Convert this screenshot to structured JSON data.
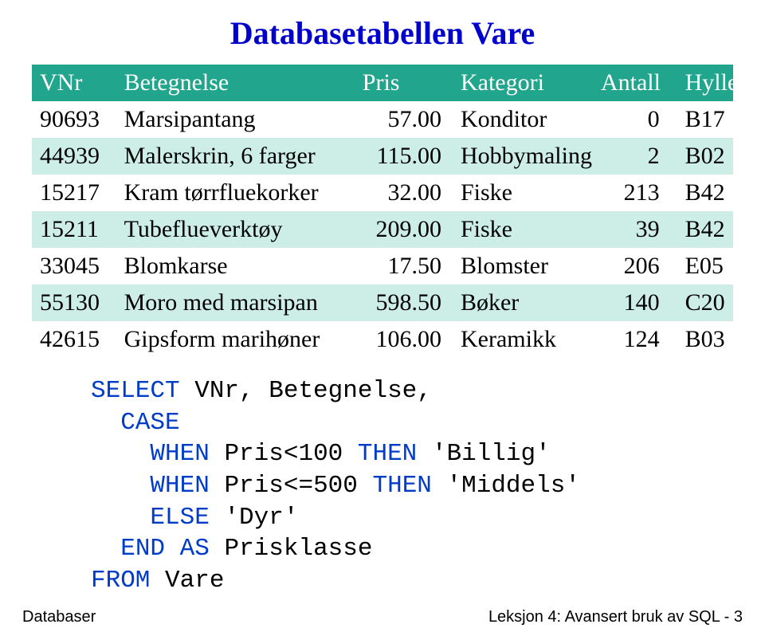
{
  "title": "Databasetabellen Vare",
  "headers": {
    "vnr": "VNr",
    "betegnelse": "Betegnelse",
    "pris": "Pris",
    "kategori": "Kategori",
    "antall": "Antall",
    "hylle": "Hylle"
  },
  "rows": [
    {
      "vnr": "90693",
      "bet": "Marsipantang",
      "pris": "57.00",
      "kat": "Konditor",
      "ant": "0",
      "hylle": "B17"
    },
    {
      "vnr": "44939",
      "bet": "Malerskrin, 6 farger",
      "pris": "115.00",
      "kat": "Hobbymaling",
      "ant": "2",
      "hylle": "B02"
    },
    {
      "vnr": "15217",
      "bet": "Kram tørrfluekorker",
      "pris": "32.00",
      "kat": "Fiske",
      "ant": "213",
      "hylle": "B42"
    },
    {
      "vnr": "15211",
      "bet": "Tubeflueverktøy",
      "pris": "209.00",
      "kat": "Fiske",
      "ant": "39",
      "hylle": "B42"
    },
    {
      "vnr": "33045",
      "bet": "Blomkarse",
      "pris": "17.50",
      "kat": "Blomster",
      "ant": "206",
      "hylle": "E05"
    },
    {
      "vnr": "55130",
      "bet": "Moro med marsipan",
      "pris": "598.50",
      "kat": "Bøker",
      "ant": "140",
      "hylle": "C20"
    },
    {
      "vnr": "42615",
      "bet": "Gipsform marihøner",
      "pris": "106.00",
      "kat": "Keramikk",
      "ant": "124",
      "hylle": "B03"
    }
  ],
  "code": {
    "kw_select": "SELECT",
    "select_args": " VNr, Betegnelse,",
    "kw_case": "CASE",
    "kw_when1": "WHEN",
    "cond1": " Pris<100 ",
    "kw_then1": "THEN",
    "val1": " 'Billig'",
    "kw_when2": "WHEN",
    "cond2": " Pris<=500 ",
    "kw_then2": "THEN",
    "val2": " 'Middels'",
    "kw_else": "ELSE",
    "val3": " 'Dyr'",
    "kw_end": "END",
    "kw_as": "AS",
    "alias": " Prisklasse",
    "kw_from": "FROM",
    "from_tbl": " Vare"
  },
  "footer": {
    "left": "Databaser",
    "right": "Leksjon 4: Avansert bruk av SQL - 3"
  }
}
